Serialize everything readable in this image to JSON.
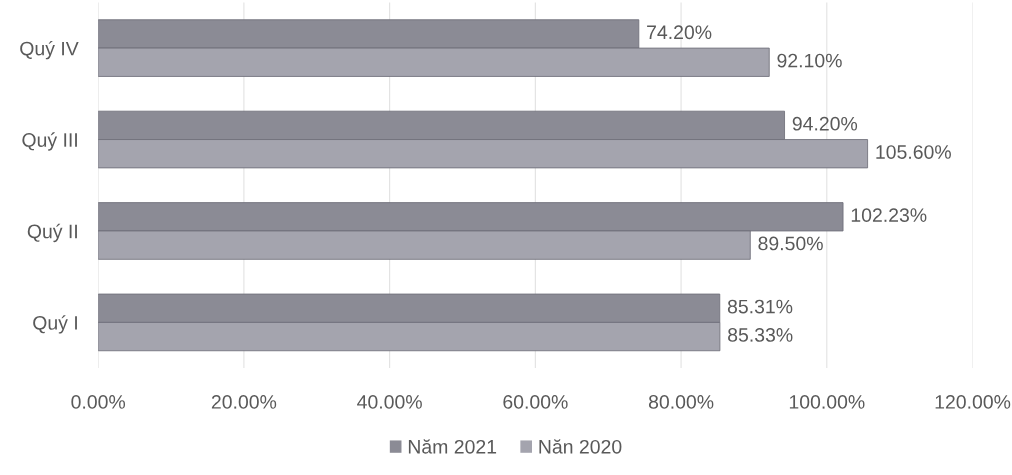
{
  "chart_data": {
    "type": "bar",
    "orientation": "horizontal",
    "categories": [
      "Quý IV",
      "Quý III",
      "Quý II",
      "Quý I"
    ],
    "series": [
      {
        "name": "Năm 2021",
        "color": "#8b8b95",
        "values": [
          74.2,
          94.2,
          102.23,
          85.31
        ],
        "value_labels": [
          "74.20%",
          "94.20%",
          "102.23%",
          "85.31%"
        ]
      },
      {
        "name": "Năn 2020",
        "color": "#a4a4ae",
        "values": [
          92.1,
          105.6,
          89.5,
          85.33
        ],
        "value_labels": [
          "92.10%",
          "105.60%",
          "89.50%",
          "85.33%"
        ]
      }
    ],
    "xlim": [
      0,
      120
    ],
    "xticks": [
      {
        "value": 0,
        "label": "0.00%"
      },
      {
        "value": 20,
        "label": "20.00%"
      },
      {
        "value": 40,
        "label": "40.00%"
      },
      {
        "value": 60,
        "label": "60.00%"
      },
      {
        "value": 80,
        "label": "80.00%"
      },
      {
        "value": 100,
        "label": "100.00%"
      },
      {
        "value": 120,
        "label": "120.00%"
      }
    ],
    "grid": "x",
    "legend": "bottom"
  }
}
